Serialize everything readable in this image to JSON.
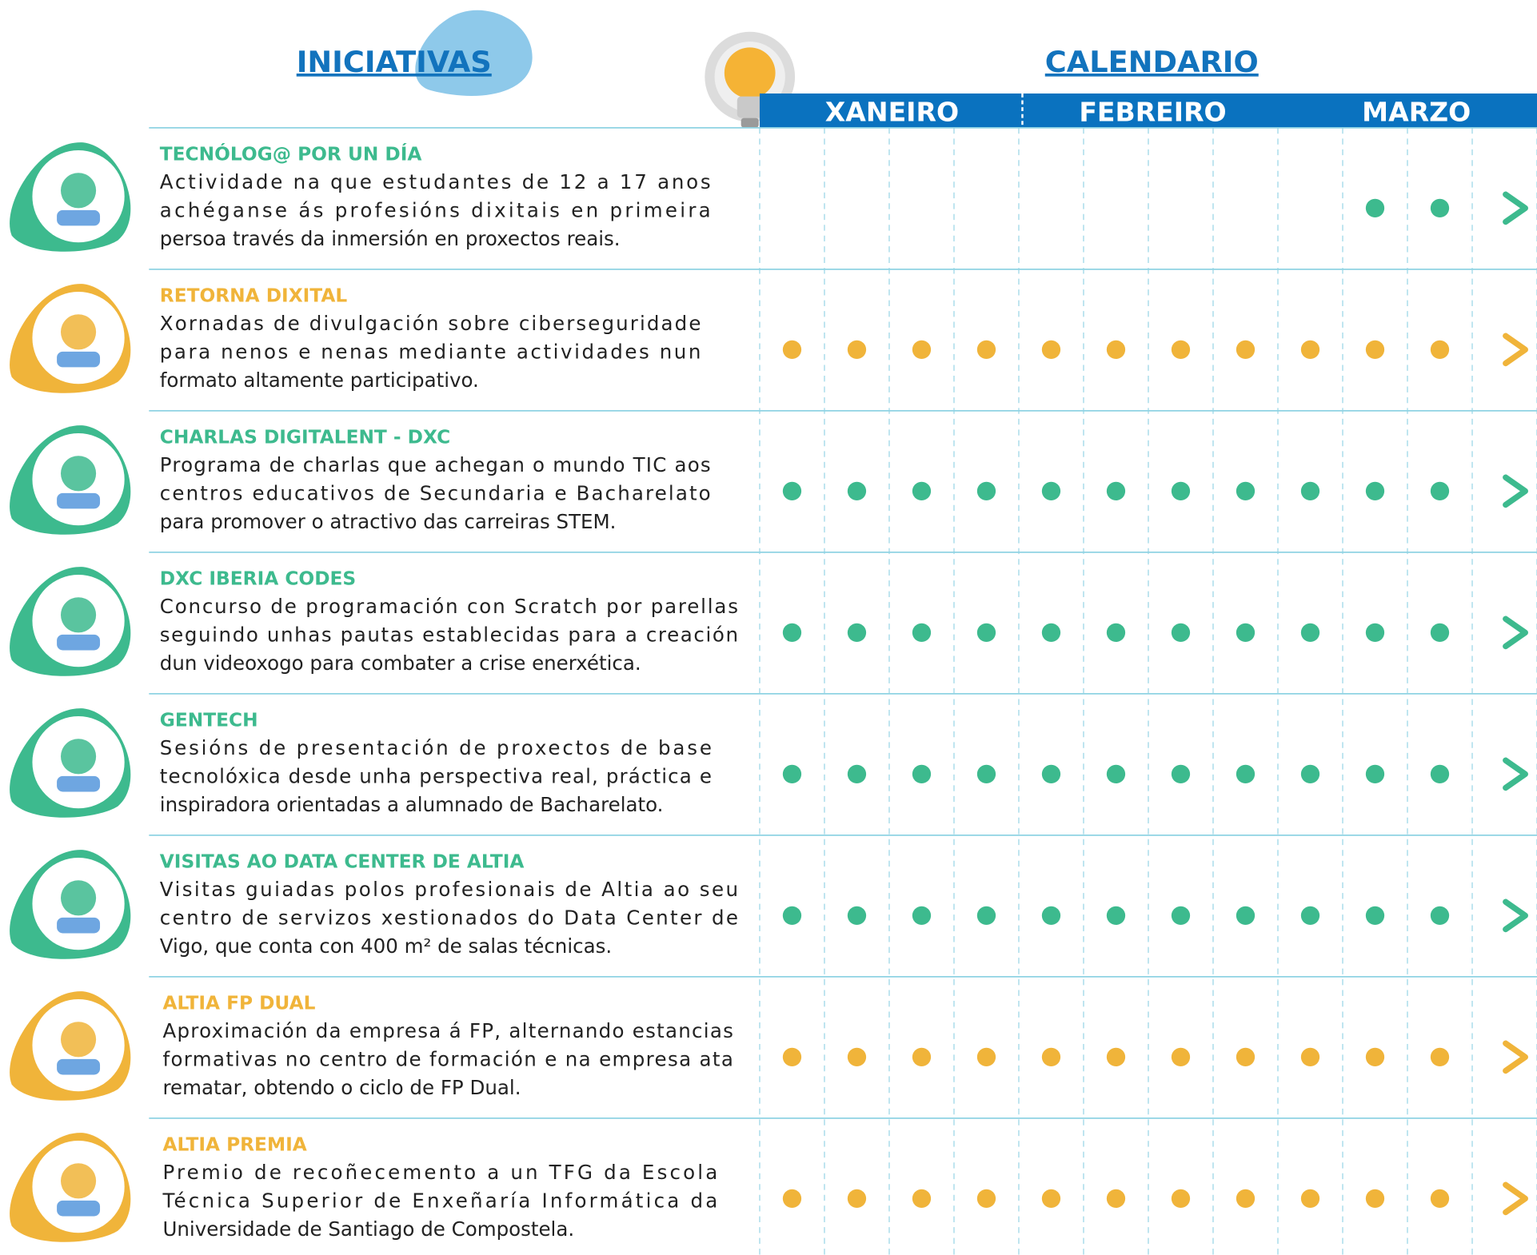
{
  "header": {
    "left_title": "INICIATIVAS",
    "right_title": "CALENDARIO",
    "months": [
      "XANEIRO",
      "FEBREIRO",
      "MARZO"
    ]
  },
  "rows": [
    {
      "title": "TECNÓLOG@ POR UN DÍA",
      "color": "#3dba8e",
      "description": [
        "Actividade na que estudantes de 12 a 17 anos",
        "achéganse ás profesións dixitais en primeira",
        "persoa través da inmersión en proxectos reais."
      ]
    },
    {
      "title": "RETORNA DIXITAL",
      "color": "#f0b43a",
      "description": [
        "Xornadas de divulgación sobre ciberseguridade",
        "para nenos e nenas mediante actividades nun",
        "formato altamente participativo."
      ]
    },
    {
      "title": "CHARLAS DIGITALENT - DXC",
      "color": "#3dba8e",
      "description": [
        "Programa de charlas que achegan o mundo TIC aos",
        "centros educativos de Secundaria e Bacharelato",
        "para promover o atractivo das carreiras STEM."
      ]
    },
    {
      "title": "DXC IBERIA CODES",
      "color": "#3dba8e",
      "description": [
        "Concurso de programación con Scratch por parellas",
        "seguindo unhas pautas establecidas para a creación",
        "dun videoxogo para combater a crise enerxética."
      ]
    },
    {
      "title": "GENTECH",
      "color": "#3dba8e",
      "description": [
        "Sesións de presentación de proxectos de base",
        "tecnolóxica desde unha perspectiva real, práctica e",
        "inspiradora orientadas a alumnado de Bacharelato."
      ]
    },
    {
      "title": "VISITAS AO DATA CENTER DE ALTIA",
      "color": "#3dba8e",
      "description": [
        "Visitas guiadas polos profesionais de Altia ao seu",
        "centro de servizos xestionados do Data Center de",
        "Vigo, que conta con 400 m² de salas técnicas."
      ]
    },
    {
      "title": "ALTIA FP DUAL",
      "color": "#f0b43a",
      "description": [
        "Aproximación da empresa á FP, alternando estancias",
        "formativas no centro de formación e na empresa ata",
        "rematar, obtendo o ciclo de FP Dual."
      ]
    },
    {
      "title": "ALTIA PREMIA",
      "color": "#f0b43a",
      "description": [
        "Premio de recoñecemento a un TFG da Escola",
        "Técnica Superior de Enxeñaría Informática da",
        "Universidade de Santiago de Compostela."
      ]
    }
  ]
}
